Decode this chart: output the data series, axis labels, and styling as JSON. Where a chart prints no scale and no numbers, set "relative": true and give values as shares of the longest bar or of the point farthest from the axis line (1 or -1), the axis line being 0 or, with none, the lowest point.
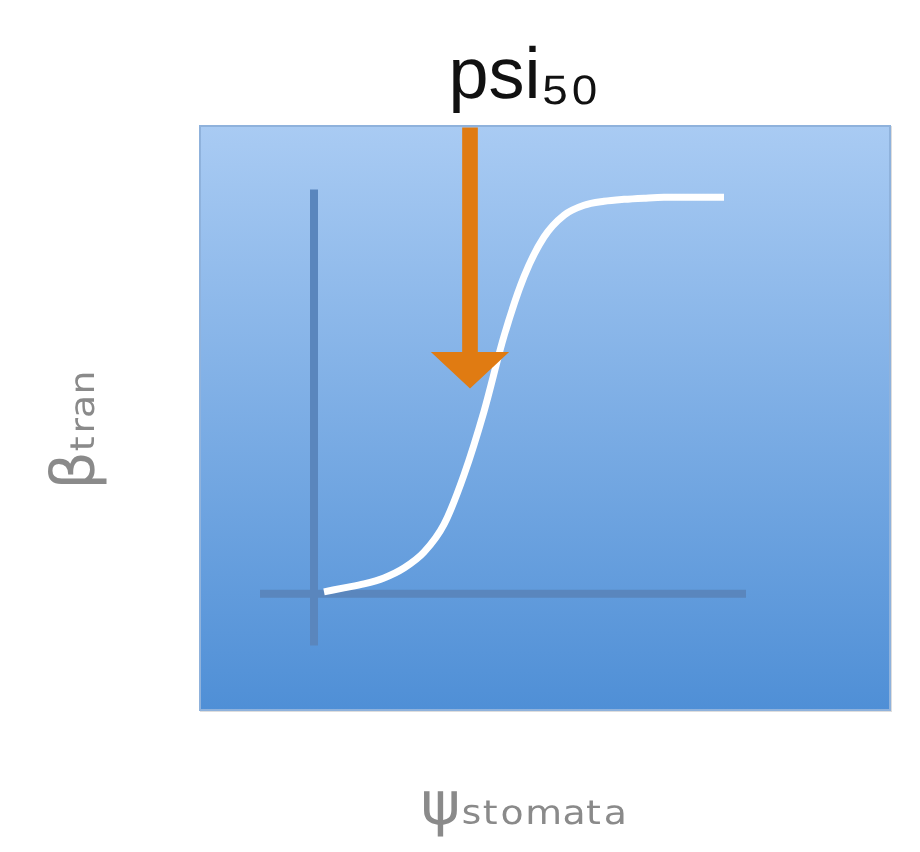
{
  "chart_data": {
    "type": "line",
    "relative": true,
    "categories": [
      null,
      null,
      null,
      null,
      null,
      null,
      null,
      null,
      null,
      null,
      null,
      null,
      null,
      null,
      null,
      null,
      null,
      null,
      null,
      null,
      null
    ],
    "values": [
      0.005,
      0.015,
      0.025,
      0.04,
      0.065,
      0.105,
      0.175,
      0.3,
      0.46,
      0.65,
      0.8,
      0.9,
      0.955,
      0.98,
      0.99,
      0.995,
      0.998,
      1,
      1,
      1,
      1
    ],
    "color": "#ffffff",
    "xlabel": "ψₛₜₒₘₐₜₐ",
    "ylabel": "βₜᵣₐₙ",
    "annotations": [
      "psi₅₀"
    ]
  }
}
